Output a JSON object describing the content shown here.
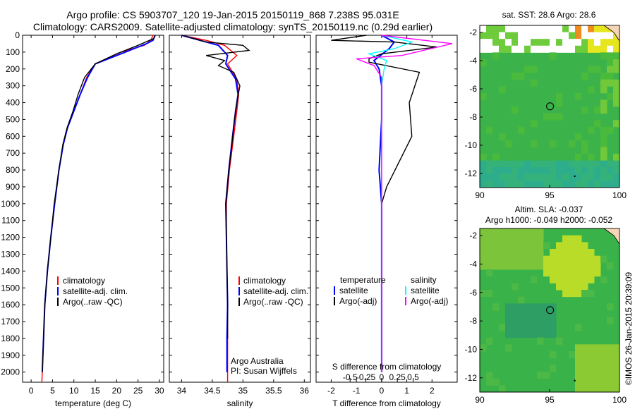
{
  "header": {
    "title_line1": "Argo profile: CS 5903707_120 19-Jan-2015 20150119_868 7.238S 95.031E",
    "title_line2": "Climatology: CARS2009. Satellite-adjusted climatology: synTS_20150119.nc (0.29d earlier)"
  },
  "colors": {
    "climatology": "#ff0000",
    "satellite_adj": "#0000ff",
    "argo": "#000000",
    "satellite_salinity": "#00ffff",
    "argo_adj_salinity": "#ff00ff"
  },
  "chart_data": [
    {
      "type": "line",
      "id": "temperature",
      "xlabel": "temperature (deg C)",
      "xlim": [
        -2,
        31
      ],
      "ylim": [
        2060,
        0
      ],
      "x_ticks": [
        0,
        5,
        10,
        15,
        20,
        25,
        30
      ],
      "y_ticks": [
        0,
        100,
        200,
        300,
        400,
        500,
        600,
        700,
        800,
        900,
        1000,
        1100,
        1200,
        1300,
        1400,
        1500,
        1600,
        1700,
        1800,
        1900,
        2000
      ],
      "legend": [
        "climatology",
        "satellite-adj. clim.",
        "Argo(..raw -QC)"
      ],
      "series": [
        {
          "name": "climatology",
          "color": "#ff0000",
          "points": [
            [
              28.5,
              0
            ],
            [
              28.0,
              30
            ],
            [
              26.5,
              60
            ],
            [
              21,
              100
            ],
            [
              15,
              170
            ],
            [
              13,
              250
            ],
            [
              11.5,
              350
            ],
            [
              10,
              450
            ],
            [
              8.5,
              550
            ],
            [
              7.5,
              650
            ],
            [
              6.5,
              800
            ],
            [
              5.5,
              1000
            ],
            [
              4.6,
              1200
            ],
            [
              3.8,
              1400
            ],
            [
              3.2,
              1600
            ],
            [
              2.9,
              1800
            ],
            [
              2.6,
              2000
            ],
            [
              2.5,
              2060
            ]
          ]
        },
        {
          "name": "satellite-adj. clim.",
          "color": "#0000ff",
          "points": [
            [
              29,
              0
            ],
            [
              28.5,
              30
            ],
            [
              27,
              50
            ],
            [
              22,
              100
            ],
            [
              15,
              170
            ],
            [
              13.2,
              250
            ],
            [
              11.5,
              350
            ],
            [
              10,
              450
            ],
            [
              8.5,
              550
            ],
            [
              7.5,
              650
            ],
            [
              6.5,
              800
            ],
            [
              5.5,
              1000
            ],
            [
              4.6,
              1200
            ],
            [
              3.8,
              1400
            ],
            [
              3.2,
              1600
            ],
            [
              2.9,
              1800
            ],
            [
              2.6,
              2000
            ]
          ]
        },
        {
          "name": "Argo(..raw -QC)",
          "color": "#000000",
          "points": [
            [
              29,
              0
            ],
            [
              28.6,
              20
            ],
            [
              25,
              60
            ],
            [
              20,
              110
            ],
            [
              15,
              170
            ],
            [
              12.5,
              250
            ],
            [
              11,
              350
            ],
            [
              9.8,
              450
            ],
            [
              8.4,
              550
            ],
            [
              7.4,
              650
            ],
            [
              6.5,
              800
            ],
            [
              5.4,
              1000
            ],
            [
              4.6,
              1200
            ],
            [
              3.8,
              1400
            ],
            [
              3.2,
              1600
            ],
            [
              2.9,
              1800
            ],
            [
              2.6,
              2000
            ]
          ]
        }
      ]
    },
    {
      "type": "line",
      "id": "salinity",
      "xlabel": "salinity",
      "xlim": [
        33.8,
        36.1
      ],
      "ylim": [
        2060,
        0
      ],
      "x_ticks": [
        34,
        34.5,
        35,
        35.5,
        36
      ],
      "legend": [
        "climatology",
        "satellite-adj. clim.",
        "Argo(..raw -QC)"
      ],
      "annotation": [
        "Argo Australia",
        "PI: Susan Wijffels"
      ],
      "series": [
        {
          "name": "climatology",
          "color": "#ff0000",
          "points": [
            [
              34.0,
              0
            ],
            [
              34.4,
              30
            ],
            [
              34.7,
              60
            ],
            [
              34.9,
              120
            ],
            [
              34.75,
              170
            ],
            [
              34.9,
              260
            ],
            [
              34.93,
              350
            ],
            [
              34.9,
              450
            ],
            [
              34.85,
              600
            ],
            [
              34.78,
              800
            ],
            [
              34.73,
              1000
            ],
            [
              34.73,
              1200
            ],
            [
              34.74,
              1400
            ],
            [
              34.75,
              1600
            ],
            [
              34.75,
              1800
            ],
            [
              34.75,
              2060
            ]
          ]
        },
        {
          "name": "satellite-adj. clim.",
          "color": "#0000ff",
          "points": [
            [
              34.0,
              0
            ],
            [
              34.3,
              30
            ],
            [
              34.6,
              60
            ],
            [
              34.75,
              120
            ],
            [
              34.72,
              170
            ],
            [
              34.88,
              260
            ],
            [
              34.92,
              350
            ],
            [
              34.88,
              450
            ],
            [
              34.83,
              600
            ],
            [
              34.77,
              800
            ],
            [
              34.72,
              1000
            ],
            [
              34.73,
              1200
            ],
            [
              34.74,
              1400
            ],
            [
              34.75,
              1600
            ],
            [
              34.74,
              1800
            ],
            [
              34.74,
              2000
            ]
          ]
        },
        {
          "name": "Argo(..raw -QC)",
          "color": "#000000",
          "points": [
            [
              34.0,
              0
            ],
            [
              34.2,
              20
            ],
            [
              34.4,
              40
            ],
            [
              35.0,
              60
            ],
            [
              35.1,
              90
            ],
            [
              34.4,
              120
            ],
            [
              34.7,
              150
            ],
            [
              34.6,
              180
            ],
            [
              34.85,
              220
            ],
            [
              34.95,
              300
            ],
            [
              34.9,
              400
            ],
            [
              34.86,
              500
            ],
            [
              34.82,
              650
            ],
            [
              34.77,
              800
            ],
            [
              34.72,
              1000
            ],
            [
              34.73,
              1200
            ],
            [
              34.74,
              1400
            ],
            [
              34.75,
              1600
            ],
            [
              34.75,
              1800
            ]
          ]
        }
      ]
    },
    {
      "type": "line",
      "id": "difference",
      "xlabel": "T difference from climatology",
      "top_xlabel": "S difference from climatology",
      "xlim": [
        -2.6,
        3.0
      ],
      "ylim": [
        2060,
        0
      ],
      "x_ticks": [
        -2,
        -1,
        0,
        1,
        2
      ],
      "s_ticks": [
        -0.5,
        -0.25,
        0,
        0.25,
        0.5
      ],
      "s_tick_labels": [
        "-0.5",
        "-0.25",
        "0",
        "0.25",
        "0.5"
      ],
      "legend_headers": [
        "temperature",
        "salinity"
      ],
      "legend": [
        "satellite",
        "Argo(-adj)",
        "satellite",
        "Argo(-adj)"
      ],
      "series": [
        {
          "name": "temperature satellite",
          "color": "#0000ff",
          "points": [
            [
              0,
              0
            ],
            [
              0.5,
              40
            ],
            [
              0.3,
              80
            ],
            [
              -0.3,
              150
            ],
            [
              -0.1,
              200
            ],
            [
              0,
              300
            ],
            [
              0,
              500
            ],
            [
              -0.1,
              800
            ],
            [
              0,
              1000
            ],
            [
              0,
              2000
            ]
          ]
        },
        {
          "name": "temperature Argo(-adj)",
          "color": "#000000",
          "points": [
            [
              -0.6,
              0
            ],
            [
              -2,
              30
            ],
            [
              0.5,
              40
            ],
            [
              2.2,
              70
            ],
            [
              0,
              110
            ],
            [
              -0.5,
              140
            ],
            [
              -0.5,
              160
            ],
            [
              1.5,
              220
            ],
            [
              1.1,
              400
            ],
            [
              1.2,
              600
            ],
            [
              0.2,
              900
            ],
            [
              0,
              1000
            ],
            [
              0,
              1200
            ],
            [
              0,
              2000
            ]
          ]
        },
        {
          "name": "salinity satellite",
          "color": "#00ffff",
          "points": [
            [
              0,
              0
            ],
            [
              1.2,
              40
            ],
            [
              0.5,
              80
            ],
            [
              -0.5,
              110
            ],
            [
              0.2,
              150
            ],
            [
              0.1,
              200
            ],
            [
              0,
              300
            ],
            [
              0,
              500
            ],
            [
              0,
              800
            ],
            [
              0,
              1000
            ],
            [
              0,
              2000
            ]
          ]
        },
        {
          "name": "salinity Argo(-adj)",
          "color": "#ff00ff",
          "points": [
            [
              0,
              0
            ],
            [
              2.8,
              50
            ],
            [
              0.8,
              120
            ],
            [
              -1.0,
              140
            ],
            [
              -0.3,
              180
            ],
            [
              0,
              250
            ],
            [
              0,
              500
            ],
            [
              0,
              800
            ],
            [
              0,
              1000
            ],
            [
              0,
              2000
            ]
          ]
        }
      ]
    },
    {
      "type": "heatmap",
      "id": "sst_map",
      "title": "sat. SST: 28.6 Argo: 28.6",
      "xlim": [
        90,
        100
      ],
      "ylim": [
        -13,
        -1.5
      ],
      "x_ticks": [
        90,
        95,
        100
      ],
      "y_ticks": [
        -2,
        -4,
        -6,
        -8,
        -10,
        -12
      ],
      "marker": [
        95.03,
        -7.24
      ]
    },
    {
      "type": "heatmap",
      "id": "sla_map",
      "title": "Altim. SLA: -0.037",
      "subtitle": "Argo h1000: -0.049 h2000: -0.052",
      "xlim": [
        90,
        100
      ],
      "ylim": [
        -13,
        -1.5
      ],
      "x_ticks": [
        90,
        95,
        100
      ],
      "y_ticks": [
        -2,
        -4,
        -6,
        -8,
        -10,
        -12
      ],
      "marker": [
        95.03,
        -7.24
      ]
    }
  ],
  "footer": {
    "stamp": "©IMOS 26-Jan-2015 20:39:09"
  }
}
